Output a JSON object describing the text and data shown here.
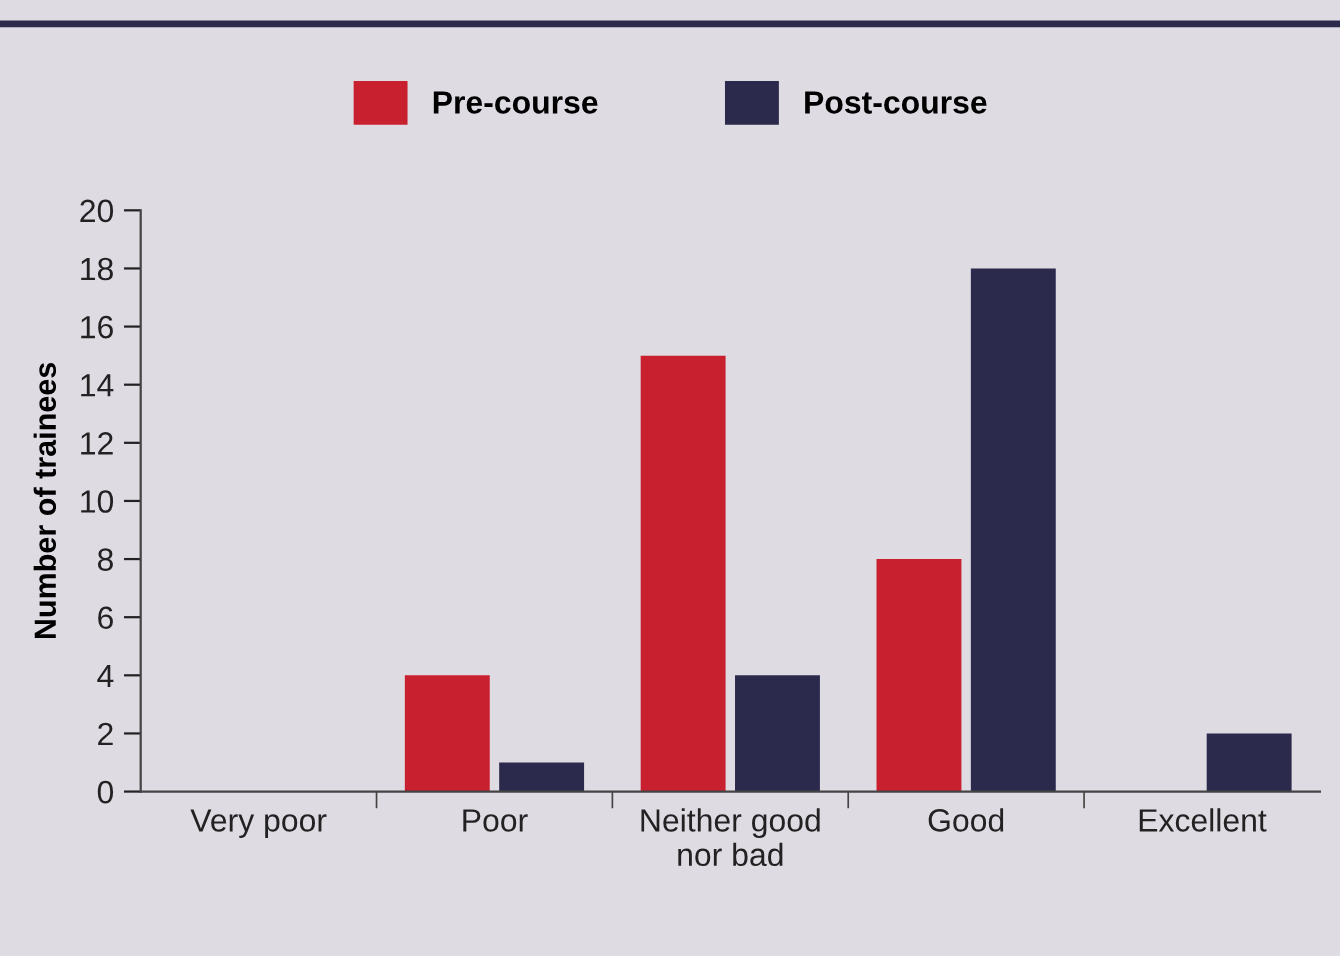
{
  "chart_data": {
    "type": "bar",
    "ylabel": "Number of trainees",
    "categories": [
      "Very poor",
      "Poor",
      "Neither good\nnor bad",
      "Good",
      "Excellent"
    ],
    "series": [
      {
        "name": "Pre-course",
        "color": "#c8202f",
        "values": [
          0,
          4,
          15,
          8,
          0
        ]
      },
      {
        "name": "Post-course",
        "color": "#2b2a4c",
        "values": [
          0,
          1,
          4,
          18,
          2
        ]
      }
    ],
    "ylim": [
      0,
      20
    ],
    "yticks": [
      0,
      2,
      4,
      6,
      8,
      10,
      12,
      14,
      16,
      18,
      20
    ],
    "grid": false,
    "legend": "top"
  }
}
